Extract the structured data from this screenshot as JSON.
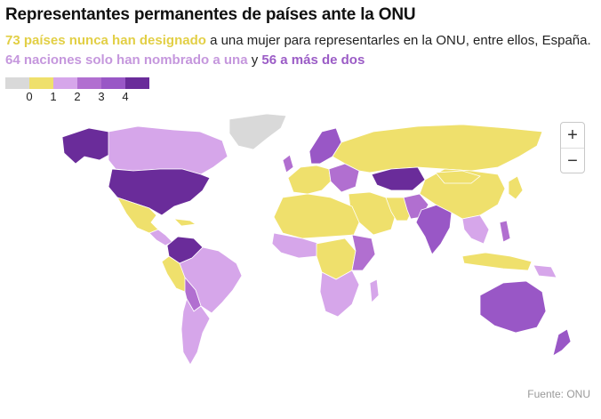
{
  "title": "Representantes permanentes de países ante la ONU",
  "subtitle": {
    "part1_highlight": "73 países nunca han designado",
    "part1_rest": " a una mujer para representarles en la ONU, entre ellos, España. ",
    "part2_highlight": "64 naciones solo han nombrado a una",
    "part2_mid": " y ",
    "part3_highlight": "56 a más de dos"
  },
  "legend": {
    "labels": [
      "0",
      "1",
      "2",
      "3",
      "4"
    ],
    "colors": [
      "#d9d9d9",
      "#efe06c",
      "#d6a6ea",
      "#b16fd0",
      "#9957c6",
      "#6a2c9a"
    ]
  },
  "map": {
    "colors": {
      "no_data": "#d9d9d9",
      "zero": "#efe06c",
      "one": "#d6a6ea",
      "two": "#b16fd0",
      "three": "#9957c6",
      "four": "#6a2c9a"
    }
  },
  "zoom": {
    "in_label": "+",
    "out_label": "−"
  },
  "source": "Fuente: ONU"
}
